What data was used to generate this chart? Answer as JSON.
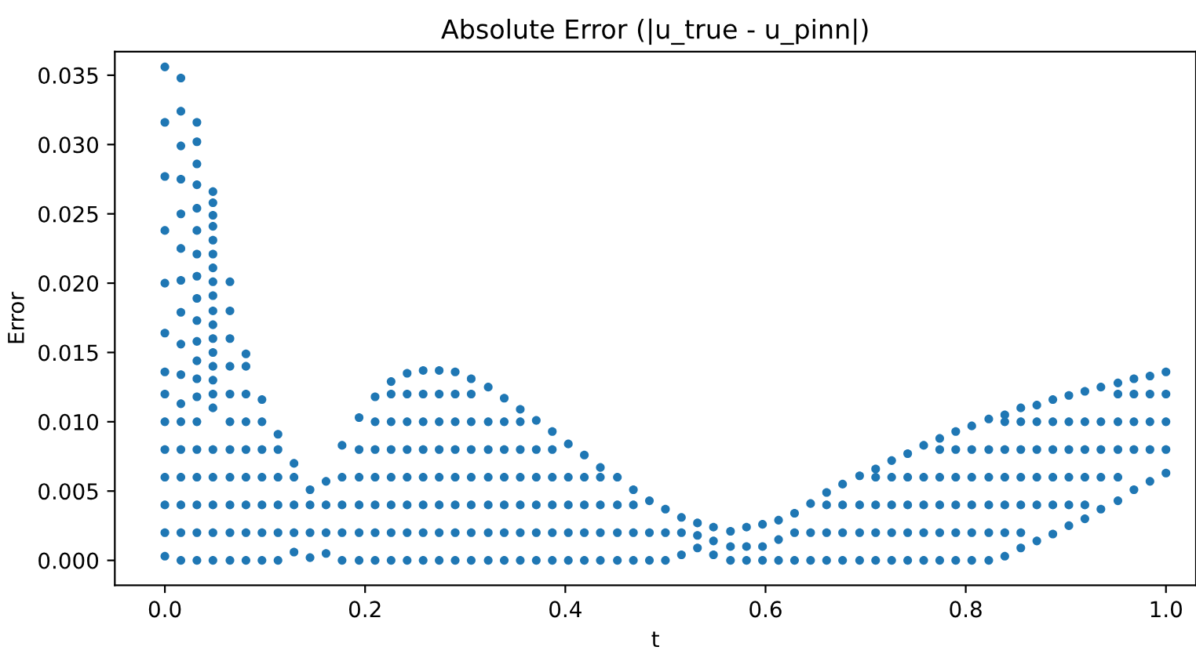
{
  "chart_data": {
    "type": "scatter",
    "title": "Absolute Error (|u_true - u_pinn|)",
    "xlabel": "t",
    "ylabel": "Error",
    "xlim": [
      -0.05,
      1.03
    ],
    "ylim": [
      -0.0018,
      0.0367
    ],
    "xticks": [
      {
        "value": 0,
        "label": "0.0"
      },
      {
        "value": 0.2,
        "label": "0.2"
      },
      {
        "value": 0.4,
        "label": "0.4"
      },
      {
        "value": 0.6,
        "label": "0.6"
      },
      {
        "value": 0.8,
        "label": "0.8"
      },
      {
        "value": 1.0,
        "label": "1.0"
      }
    ],
    "yticks": [
      {
        "value": 0,
        "label": "0.000"
      },
      {
        "value": 0.005,
        "label": "0.005"
      },
      {
        "value": 0.01,
        "label": "0.010"
      },
      {
        "value": 0.015,
        "label": "0.015"
      },
      {
        "value": 0.02,
        "label": "0.020"
      },
      {
        "value": 0.025,
        "label": "0.025"
      },
      {
        "value": 0.03,
        "label": "0.030"
      },
      {
        "value": 0.035,
        "label": "0.035"
      }
    ],
    "grid": false,
    "marker": "circle",
    "series": [
      {
        "color": "#1f77b4",
        "x": [
          0,
          0,
          0,
          0,
          0,
          0,
          0,
          0,
          0,
          0,
          0,
          0,
          0,
          0,
          0.016,
          0.016,
          0.016,
          0.016,
          0.016,
          0.016,
          0.016,
          0.016,
          0.016,
          0.016,
          0.016,
          0.016,
          0.016,
          0.016,
          0.016,
          0.016,
          0.016,
          0.032,
          0.032,
          0.032,
          0.032,
          0.032,
          0.032,
          0.032,
          0.032,
          0.032,
          0.032,
          0.032,
          0.032,
          0.032,
          0.032,
          0.032,
          0.032,
          0.032,
          0.032,
          0.032,
          0.032,
          0.048,
          0.048,
          0.048,
          0.048,
          0.048,
          0.048,
          0.048,
          0.048,
          0.048,
          0.048,
          0.048,
          0.048,
          0.048,
          0.048,
          0.048,
          0.048,
          0.048,
          0.048,
          0.048,
          0.048,
          0.048,
          0.048,
          0.065,
          0.065,
          0.065,
          0.065,
          0.065,
          0.065,
          0.065,
          0.065,
          0.065,
          0.065,
          0.065,
          0.081,
          0.081,
          0.081,
          0.081,
          0.081,
          0.081,
          0.081,
          0.081,
          0.081,
          0.097,
          0.097,
          0.097,
          0.097,
          0.097,
          0.097,
          0.097,
          0.113,
          0.113,
          0.113,
          0.113,
          0.113,
          0.113,
          0.129,
          0.129,
          0.129,
          0.129,
          0.129,
          0.145,
          0.145,
          0.145,
          0.145,
          0.161,
          0.161,
          0.161,
          0.161,
          0.177,
          0.177,
          0.177,
          0.177,
          0.177,
          0.194,
          0.194,
          0.194,
          0.194,
          0.194,
          0.194,
          0.21,
          0.21,
          0.21,
          0.21,
          0.21,
          0.21,
          0.21,
          0.226,
          0.226,
          0.226,
          0.226,
          0.226,
          0.226,
          0.226,
          0.226,
          0.242,
          0.242,
          0.242,
          0.242,
          0.242,
          0.242,
          0.242,
          0.242,
          0.258,
          0.258,
          0.258,
          0.258,
          0.258,
          0.258,
          0.258,
          0.258,
          0.274,
          0.274,
          0.274,
          0.274,
          0.274,
          0.274,
          0.274,
          0.274,
          0.29,
          0.29,
          0.29,
          0.29,
          0.29,
          0.29,
          0.29,
          0.29,
          0.306,
          0.306,
          0.306,
          0.306,
          0.306,
          0.306,
          0.306,
          0.306,
          0.323,
          0.323,
          0.323,
          0.323,
          0.323,
          0.323,
          0.323,
          0.339,
          0.339,
          0.339,
          0.339,
          0.339,
          0.339,
          0.339,
          0.355,
          0.355,
          0.355,
          0.355,
          0.355,
          0.355,
          0.355,
          0.371,
          0.371,
          0.371,
          0.371,
          0.371,
          0.371,
          0.387,
          0.387,
          0.387,
          0.387,
          0.387,
          0.387,
          0.403,
          0.403,
          0.403,
          0.403,
          0.403,
          0.419,
          0.419,
          0.419,
          0.419,
          0.419,
          0.435,
          0.435,
          0.435,
          0.435,
          0.435,
          0.452,
          0.452,
          0.452,
          0.452,
          0.468,
          0.468,
          0.468,
          0.468,
          0.484,
          0.484,
          0.484,
          0.5,
          0.5,
          0.5,
          0.516,
          0.516,
          0.516,
          0.532,
          0.532,
          0.532,
          0.548,
          0.548,
          0.548,
          0.565,
          0.565,
          0.565,
          0.581,
          0.581,
          0.581,
          0.597,
          0.597,
          0.597,
          0.613,
          0.613,
          0.613,
          0.629,
          0.629,
          0.629,
          0.645,
          0.645,
          0.645,
          0.661,
          0.661,
          0.661,
          0.661,
          0.677,
          0.677,
          0.677,
          0.677,
          0.694,
          0.694,
          0.694,
          0.694,
          0.71,
          0.71,
          0.71,
          0.71,
          0.71,
          0.726,
          0.726,
          0.726,
          0.726,
          0.726,
          0.742,
          0.742,
          0.742,
          0.742,
          0.742,
          0.758,
          0.758,
          0.758,
          0.758,
          0.758,
          0.774,
          0.774,
          0.774,
          0.774,
          0.774,
          0.774,
          0.79,
          0.79,
          0.79,
          0.79,
          0.79,
          0.79,
          0.806,
          0.806,
          0.806,
          0.806,
          0.806,
          0.806,
          0.823,
          0.823,
          0.823,
          0.823,
          0.823,
          0.823,
          0.839,
          0.839,
          0.839,
          0.839,
          0.839,
          0.839,
          0.839,
          0.855,
          0.855,
          0.855,
          0.855,
          0.855,
          0.855,
          0.855,
          0.871,
          0.871,
          0.871,
          0.871,
          0.871,
          0.871,
          0.887,
          0.887,
          0.887,
          0.887,
          0.887,
          0.887,
          0.903,
          0.903,
          0.903,
          0.903,
          0.903,
          0.903,
          0.919,
          0.919,
          0.919,
          0.919,
          0.919,
          0.919,
          0.935,
          0.935,
          0.935,
          0.935,
          0.935,
          0.952,
          0.952,
          0.952,
          0.952,
          0.952,
          0.952,
          0.968,
          0.968,
          0.968,
          0.968,
          0.968,
          0.984,
          0.984,
          0.984,
          0.984,
          0.984,
          1.0,
          1.0,
          1.0,
          1.0,
          1.0
        ],
        "values": [
          0.0356,
          0.0316,
          0.0277,
          0.0238,
          0.02,
          0.0164,
          0.0136,
          0.012,
          0.01,
          0.008,
          0.006,
          0.004,
          0.002,
          0.0003,
          0.0348,
          0.0324,
          0.0299,
          0.0275,
          0.025,
          0.0225,
          0.0202,
          0.0179,
          0.0156,
          0.0134,
          0.0113,
          0.01,
          0.008,
          0.006,
          0.004,
          0.002,
          0,
          0.0316,
          0.0302,
          0.0286,
          0.0271,
          0.0254,
          0.0238,
          0.0221,
          0.0205,
          0.0189,
          0.0173,
          0.0158,
          0.0144,
          0.0131,
          0.0118,
          0.01,
          0.008,
          0.006,
          0.004,
          0.002,
          0,
          0.0266,
          0.0258,
          0.0249,
          0.0241,
          0.0231,
          0.0221,
          0.0211,
          0.0201,
          0.0191,
          0.018,
          0.017,
          0.016,
          0.015,
          0.014,
          0.013,
          0.012,
          0.011,
          0.008,
          0.006,
          0.004,
          0.002,
          0,
          0.0201,
          0.018,
          0.016,
          0.014,
          0.012,
          0.01,
          0.008,
          0.006,
          0.004,
          0.002,
          0,
          0.0149,
          0.014,
          0.012,
          0.01,
          0.008,
          0.006,
          0.004,
          0.002,
          0,
          0.0116,
          0.01,
          0.008,
          0.006,
          0.004,
          0.002,
          0,
          0.0091,
          0.008,
          0.006,
          0.004,
          0.002,
          0,
          0.007,
          0.006,
          0.004,
          0.002,
          0.0006,
          0.0051,
          0.004,
          0.002,
          0.0002,
          0.0057,
          0.004,
          0.002,
          0.0005,
          0.0083,
          0.006,
          0.004,
          0.002,
          0,
          0.0103,
          0.008,
          0.006,
          0.004,
          0.002,
          0,
          0.0118,
          0.01,
          0.008,
          0.006,
          0.004,
          0.002,
          0,
          0.0129,
          0.012,
          0.01,
          0.008,
          0.006,
          0.004,
          0.002,
          0,
          0.0135,
          0.012,
          0.01,
          0.008,
          0.006,
          0.004,
          0.002,
          0,
          0.0137,
          0.012,
          0.01,
          0.008,
          0.006,
          0.004,
          0.002,
          0,
          0.0137,
          0.012,
          0.01,
          0.008,
          0.006,
          0.004,
          0.002,
          0,
          0.0136,
          0.012,
          0.01,
          0.008,
          0.006,
          0.004,
          0.002,
          0,
          0.0131,
          0.012,
          0.01,
          0.008,
          0.006,
          0.004,
          0.002,
          0,
          0.0125,
          0.01,
          0.008,
          0.006,
          0.004,
          0.002,
          0,
          0.0117,
          0.01,
          0.008,
          0.006,
          0.004,
          0.002,
          0,
          0.0109,
          0.01,
          0.008,
          0.006,
          0.004,
          0.002,
          0,
          0.0101,
          0.008,
          0.006,
          0.004,
          0.002,
          0,
          0.0093,
          0.008,
          0.006,
          0.004,
          0.002,
          0,
          0.0084,
          0.006,
          0.004,
          0.002,
          0,
          0.0076,
          0.006,
          0.004,
          0.002,
          0,
          0.0067,
          0.006,
          0.004,
          0.002,
          0,
          0.006,
          0.004,
          0.002,
          0,
          0.0051,
          0.004,
          0.002,
          0,
          0.0043,
          0.002,
          0,
          0.0037,
          0.002,
          0,
          0.0031,
          0.002,
          0.0004,
          0.0027,
          0.0018,
          0.0009,
          0.0024,
          0.0014,
          0.0004,
          0.0021,
          0.001,
          0,
          0.0024,
          0.001,
          0,
          0.0026,
          0.001,
          0,
          0.0029,
          0.0015,
          0,
          0.0034,
          0.002,
          0,
          0.0041,
          0.002,
          0,
          0.0049,
          0.004,
          0.002,
          0,
          0.0055,
          0.004,
          0.002,
          0,
          0.0061,
          0.004,
          0.002,
          0,
          0.0066,
          0.006,
          0.004,
          0.002,
          0,
          0.0072,
          0.006,
          0.004,
          0.002,
          0,
          0.0077,
          0.006,
          0.004,
          0.002,
          0,
          0.0083,
          0.006,
          0.004,
          0.002,
          0,
          0.0088,
          0.008,
          0.006,
          0.004,
          0.002,
          0,
          0.0093,
          0.008,
          0.006,
          0.004,
          0.002,
          0,
          0.0097,
          0.008,
          0.006,
          0.004,
          0.002,
          0,
          0.0102,
          0.008,
          0.006,
          0.004,
          0.002,
          0,
          0.0105,
          0.01,
          0.008,
          0.006,
          0.004,
          0.002,
          0.0003,
          0.011,
          0.01,
          0.008,
          0.006,
          0.004,
          0.002,
          0.0009,
          0.0112,
          0.01,
          0.008,
          0.006,
          0.004,
          0.0014,
          0.0116,
          0.01,
          0.008,
          0.006,
          0.004,
          0.0019,
          0.0119,
          0.01,
          0.008,
          0.006,
          0.004,
          0.0025,
          0.0122,
          0.01,
          0.008,
          0.006,
          0.004,
          0.003,
          0.0125,
          0.01,
          0.008,
          0.006,
          0.0037,
          0.0128,
          0.012,
          0.01,
          0.008,
          0.006,
          0.0043,
          0.0131,
          0.012,
          0.01,
          0.008,
          0.0051,
          0.0133,
          0.012,
          0.01,
          0.008,
          0.0057,
          0.0136,
          0.012,
          0.01,
          0.008,
          0.0063
        ]
      }
    ]
  }
}
